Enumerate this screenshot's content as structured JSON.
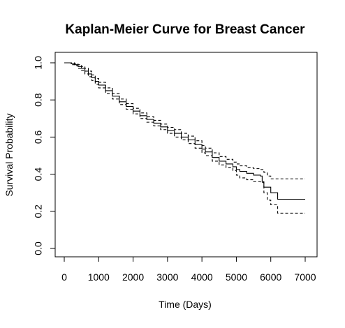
{
  "chart_data": {
    "type": "line",
    "title": "Kaplan-Meier Curve for Breast Cancer",
    "xlabel": "Time (Days)",
    "ylabel": "Survival Probability",
    "xlim": [
      0,
      7000
    ],
    "ylim": [
      0,
      1
    ],
    "x_ticks": [
      "0",
      "1000",
      "2000",
      "3000",
      "4000",
      "5000",
      "6000",
      "7000"
    ],
    "y_ticks": [
      "0.0",
      "0.2",
      "0.4",
      "0.6",
      "0.8",
      "1.0"
    ],
    "grid": false,
    "legend": "none",
    "series": [
      {
        "style": "solid",
        "x": [
          0,
          100,
          200,
          300,
          400,
          500,
          600,
          700,
          800,
          900,
          1000,
          1200,
          1400,
          1600,
          1800,
          2000,
          2200,
          2400,
          2600,
          2800,
          3000,
          3200,
          3400,
          3600,
          3800,
          4000,
          4100,
          4300,
          4500,
          4700,
          4900,
          5000,
          5100,
          5300,
          5500,
          5700,
          5750,
          5800,
          5900,
          6000,
          6200,
          7000
        ],
        "y": [
          1.0,
          1.0,
          0.995,
          0.99,
          0.98,
          0.97,
          0.955,
          0.94,
          0.92,
          0.9,
          0.88,
          0.85,
          0.82,
          0.79,
          0.765,
          0.74,
          0.715,
          0.695,
          0.675,
          0.655,
          0.635,
          0.62,
          0.6,
          0.585,
          0.56,
          0.535,
          0.52,
          0.49,
          0.47,
          0.455,
          0.44,
          0.425,
          0.415,
          0.405,
          0.395,
          0.39,
          0.36,
          0.33,
          0.33,
          0.3,
          0.265,
          0.265
        ]
      },
      {
        "style": "dashed",
        "x": [
          0,
          100,
          200,
          300,
          400,
          500,
          600,
          700,
          800,
          900,
          1000,
          1200,
          1400,
          1600,
          1800,
          2000,
          2200,
          2400,
          2600,
          2800,
          3000,
          3200,
          3400,
          3600,
          3800,
          4000,
          4100,
          4300,
          4500,
          4700,
          4900,
          5000,
          5100,
          5300,
          5500,
          5700,
          5800,
          5900,
          6000,
          7000
        ],
        "y": [
          1.0,
          1.0,
          1.0,
          0.995,
          0.99,
          0.98,
          0.97,
          0.955,
          0.935,
          0.915,
          0.895,
          0.865,
          0.835,
          0.805,
          0.78,
          0.755,
          0.73,
          0.71,
          0.69,
          0.67,
          0.652,
          0.64,
          0.62,
          0.605,
          0.58,
          0.555,
          0.54,
          0.515,
          0.495,
          0.48,
          0.465,
          0.455,
          0.445,
          0.435,
          0.43,
          0.425,
          0.41,
          0.39,
          0.375,
          0.375
        ]
      },
      {
        "style": "dashed",
        "x": [
          0,
          100,
          200,
          300,
          400,
          500,
          600,
          700,
          800,
          900,
          1000,
          1200,
          1400,
          1600,
          1800,
          2000,
          2200,
          2400,
          2600,
          2800,
          3000,
          3200,
          3400,
          3600,
          3800,
          4000,
          4100,
          4300,
          4500,
          4700,
          4900,
          5000,
          5100,
          5300,
          5500,
          5700,
          5800,
          5900,
          6000,
          6200,
          7000
        ],
        "y": [
          1.0,
          1.0,
          0.99,
          0.985,
          0.97,
          0.96,
          0.94,
          0.925,
          0.905,
          0.885,
          0.865,
          0.835,
          0.805,
          0.775,
          0.75,
          0.725,
          0.7,
          0.68,
          0.66,
          0.64,
          0.62,
          0.6,
          0.585,
          0.565,
          0.54,
          0.515,
          0.5,
          0.47,
          0.45,
          0.435,
          0.42,
          0.395,
          0.38,
          0.37,
          0.36,
          0.355,
          0.3,
          0.26,
          0.235,
          0.19,
          0.19
        ]
      }
    ]
  }
}
